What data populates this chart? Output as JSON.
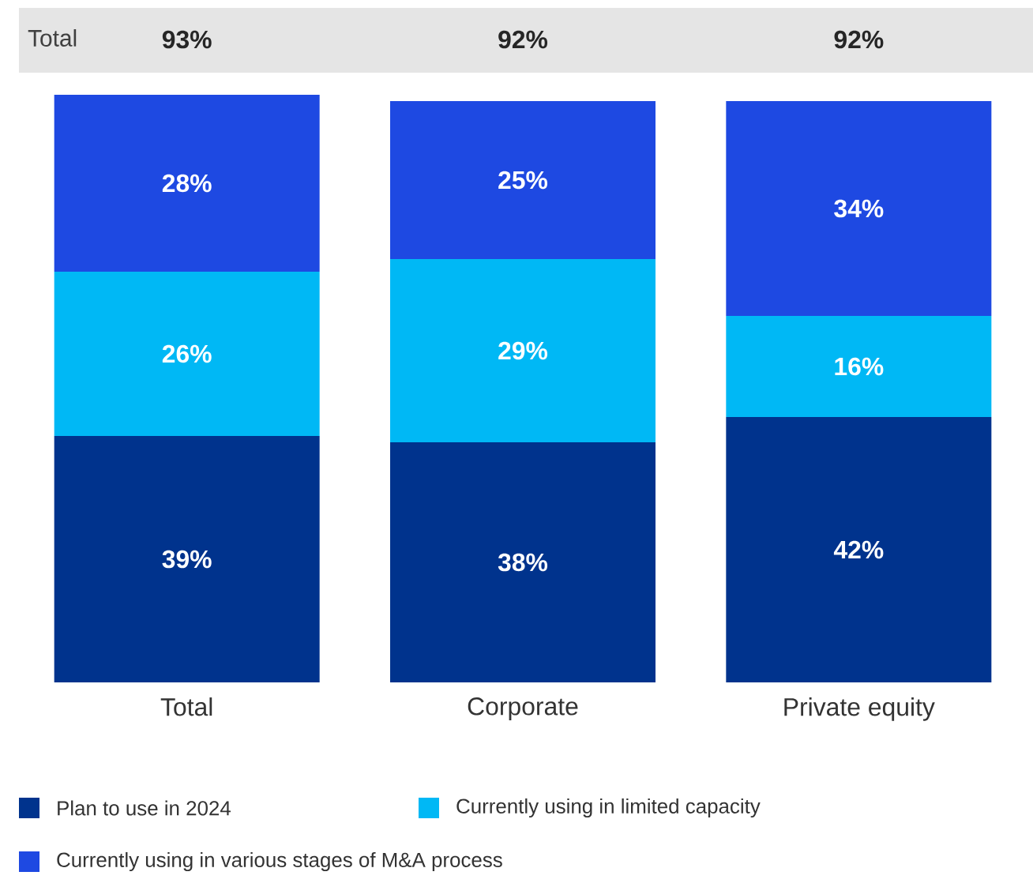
{
  "chart_data": {
    "type": "bar",
    "stacked": true,
    "categories": [
      "Total",
      "Corporate",
      "Private equity"
    ],
    "series": [
      {
        "name": "Plan to use in 2024",
        "color": "#00338d",
        "values": [
          39,
          38,
          42
        ],
        "value_labels": [
          "39%",
          "38%",
          "42%"
        ]
      },
      {
        "name": "Currently using in limited capacity",
        "color": "#00b8f5",
        "values": [
          26,
          29,
          16
        ],
        "value_labels": [
          "26%",
          "29%",
          "16%"
        ]
      },
      {
        "name": "Currently using in various stages of M&A process",
        "color": "#1e49e2",
        "values": [
          28,
          25,
          34
        ],
        "value_labels": [
          "28%",
          "25%",
          "34%"
        ]
      }
    ],
    "totals": [
      "93%",
      "92%",
      "92%"
    ],
    "annotations": [
      "Total"
    ],
    "legend": "bottom"
  }
}
